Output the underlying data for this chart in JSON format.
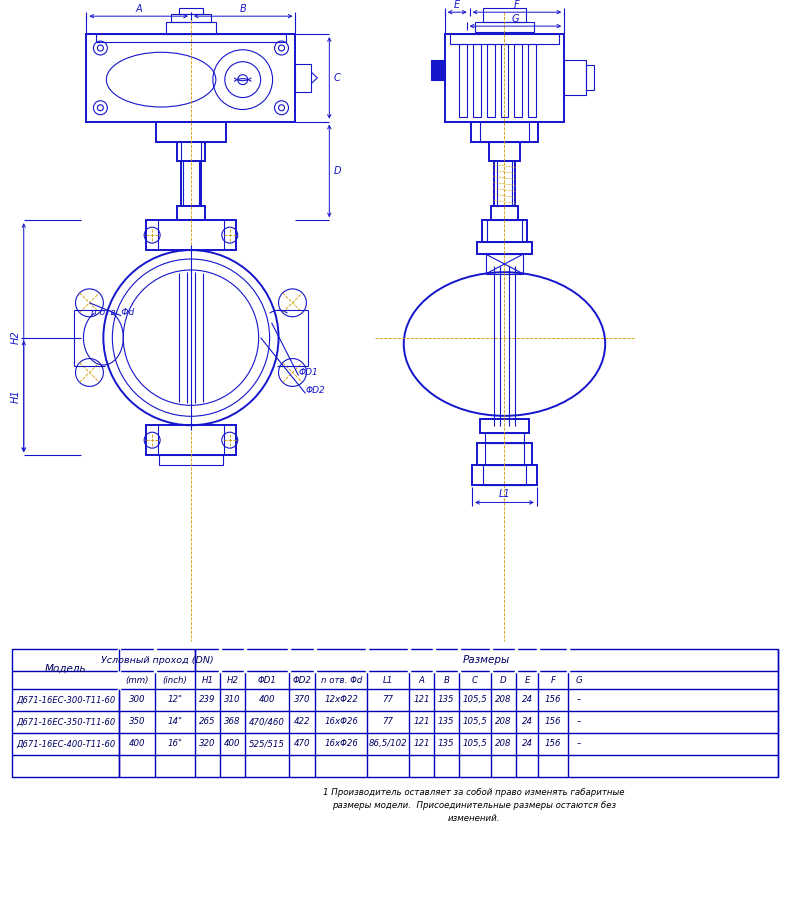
{
  "bg_color": "#ffffff",
  "drawing_color": "#1515cc",
  "orange_line_color": "#cc9900",
  "table_border_color": "#0000bb",
  "table": {
    "rows": [
      [
        "Д671-16ЕС-300-Т11-60",
        "300",
        "12\"",
        "239",
        "310",
        "400",
        "370",
        "12xΦ22",
        "77",
        "121",
        "135",
        "105,5",
        "208",
        "24",
        "156",
        "–"
      ],
      [
        "Д671-16ЕС-350-Т11-60",
        "350",
        "14\"",
        "265",
        "368",
        "470/460",
        "422",
        "16xΦ26",
        "77",
        "121",
        "135",
        "105,5",
        "208",
        "24",
        "156",
        "–"
      ],
      [
        "Д671-16ЕС-400-Т11-60",
        "400",
        "16\"",
        "320",
        "400",
        "525/515",
        "470",
        "16xΦ26",
        "86,5/102",
        "121",
        "135",
        "105,5",
        "208",
        "24",
        "156",
        "–"
      ]
    ],
    "note": "1 Производитель оставляет за собой право изменять габаритные\nразмеры модели.  Присоединительные размеры остаются без\nизменений."
  }
}
